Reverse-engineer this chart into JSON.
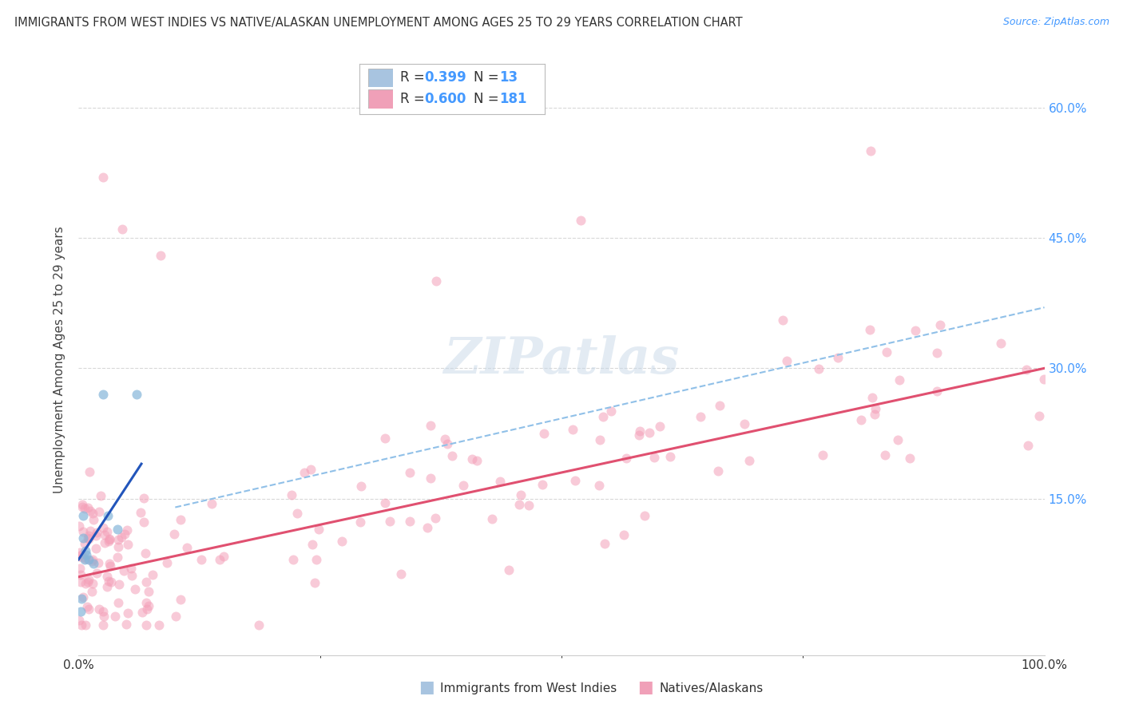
{
  "title": "IMMIGRANTS FROM WEST INDIES VS NATIVE/ALASKAN UNEMPLOYMENT AMONG AGES 25 TO 29 YEARS CORRELATION CHART",
  "source": "Source: ZipAtlas.com",
  "ylabel": "Unemployment Among Ages 25 to 29 years",
  "xlim": [
    0,
    100
  ],
  "ylim": [
    -3,
    65
  ],
  "xtick_labels": [
    "0.0%",
    "100.0%"
  ],
  "ytick_labels_right": [
    "15.0%",
    "30.0%",
    "45.0%",
    "60.0%"
  ],
  "ytick_positions": [
    15,
    30,
    45,
    60
  ],
  "grid_color": "#d8d8d8",
  "background_color": "#ffffff",
  "scatter_blue_color": "#85b5d9",
  "scatter_pink_color": "#f4a0b8",
  "line_blue_color": "#2255bb",
  "line_pink_color": "#e05070",
  "line_dashed_color": "#90c0e8",
  "watermark_color": "#c8d8e8",
  "legend_blue_color": "#a8c4e0",
  "legend_pink_color": "#f0a0b8",
  "blue_r": "0.399",
  "blue_n": "13",
  "pink_r": "0.600",
  "pink_n": "181",
  "blue_points_x": [
    0.2,
    0.3,
    0.5,
    0.5,
    0.6,
    0.7,
    0.8,
    1.0,
    1.5,
    2.5,
    3.0,
    4.0,
    6.0
  ],
  "blue_points_y": [
    2.0,
    3.5,
    10.5,
    13.0,
    8.0,
    9.0,
    8.5,
    8.0,
    7.5,
    27.0,
    13.0,
    11.5,
    27.0
  ],
  "blue_line_x": [
    0,
    6.5
  ],
  "blue_line_y": [
    8.0,
    19.0
  ],
  "pink_line_x": [
    0,
    100
  ],
  "pink_line_y": [
    6.0,
    30.0
  ],
  "dashed_line_x": [
    10,
    100
  ],
  "dashed_line_y": [
    14.0,
    37.0
  ]
}
